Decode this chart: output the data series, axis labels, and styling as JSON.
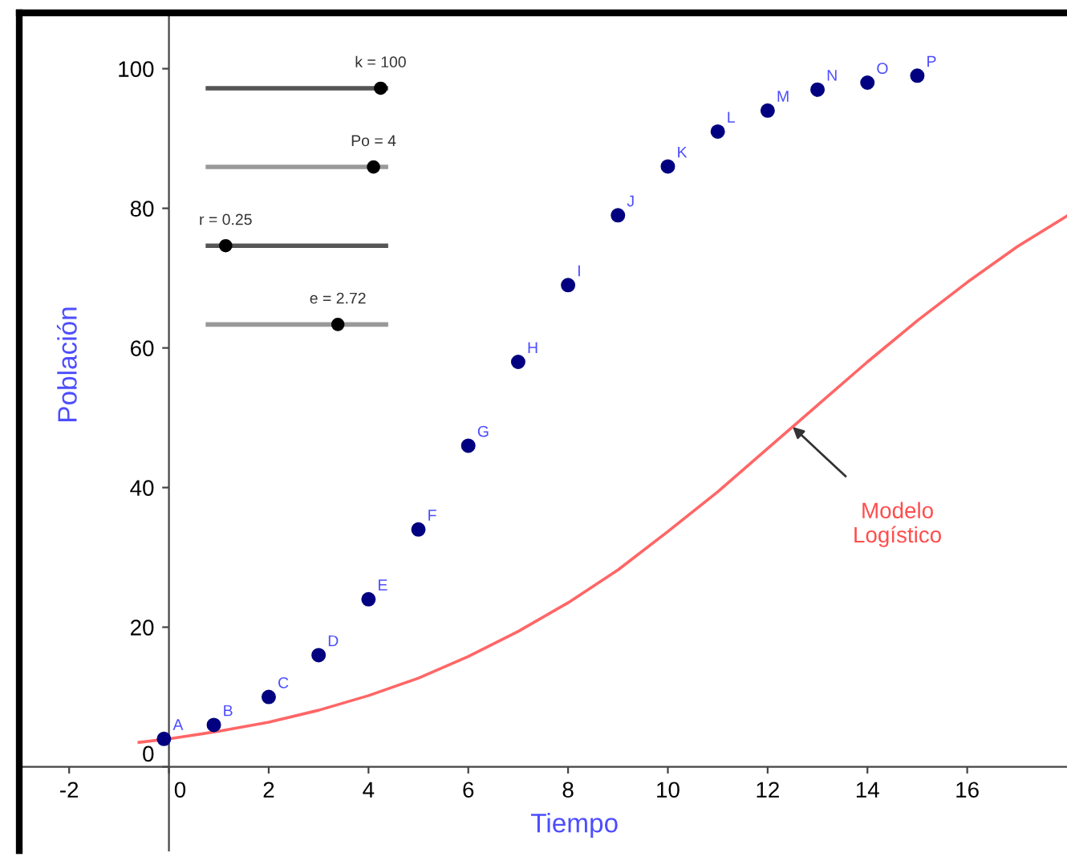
{
  "chart_data": {
    "type": "scatter",
    "xlabel": "Tiempo",
    "ylabel": "Población",
    "xlim": [
      -3,
      18
    ],
    "ylim": [
      -12,
      108
    ],
    "xticks": [
      -2,
      0,
      2,
      4,
      6,
      8,
      10,
      12,
      14,
      16
    ],
    "yticks": [
      0,
      20,
      40,
      60,
      80,
      100
    ],
    "grid": false,
    "series": [
      {
        "marker": "circle",
        "color": "#000080",
        "x": [
          -0.1,
          0.9,
          2,
          3,
          4,
          5,
          6,
          7,
          8,
          9,
          10,
          11,
          12,
          13,
          14,
          15
        ],
        "values": [
          4,
          6,
          10,
          16,
          24,
          34,
          46,
          58,
          69,
          79,
          86,
          91,
          94,
          97,
          98,
          99
        ]
      },
      {
        "type": "line",
        "color": "#ff6666",
        "x": [
          -0.6,
          0,
          1,
          2,
          3,
          4,
          5,
          6,
          7,
          8,
          9,
          10,
          11,
          12,
          13,
          14,
          15,
          16,
          17,
          18
        ],
        "values": [
          3.5,
          4,
          5.1,
          6.4,
          8.1,
          10.2,
          12.7,
          15.8,
          19.4,
          23.5,
          28.2,
          33.7,
          39.4,
          45.6,
          51.8,
          58,
          63.9,
          69.4,
          74.5,
          78.9
        ]
      }
    ],
    "annotations": [
      "k = 100",
      "Po = 4",
      "r = 0.25",
      "e = 2.72",
      {
        "text": "A",
        "x": -0.1,
        "y": 4
      },
      {
        "text": "B",
        "x": 0.9,
        "y": 6
      },
      {
        "text": "C",
        "x": 2,
        "y": 10
      },
      {
        "text": "D",
        "x": 3,
        "y": 16
      },
      {
        "text": "E",
        "x": 4,
        "y": 24
      },
      {
        "text": "F",
        "x": 5,
        "y": 34
      },
      {
        "text": "G",
        "x": 6,
        "y": 46
      },
      {
        "text": "H",
        "x": 7,
        "y": 58
      },
      {
        "text": "I",
        "x": 8,
        "y": 69
      },
      {
        "text": "J",
        "x": 9,
        "y": 79
      },
      {
        "text": "K",
        "x": 10,
        "y": 86
      },
      {
        "text": "L",
        "x": 11,
        "y": 91
      },
      {
        "text": "M",
        "x": 12,
        "y": 94
      },
      {
        "text": "N",
        "x": 13,
        "y": 97
      },
      {
        "text": "O",
        "x": 14,
        "y": 98
      },
      {
        "text": "P",
        "x": 15,
        "y": 99
      },
      {
        "text": "Modelo\nLogístico",
        "x": 12.5,
        "y": 48.7
      }
    ]
  }
}
